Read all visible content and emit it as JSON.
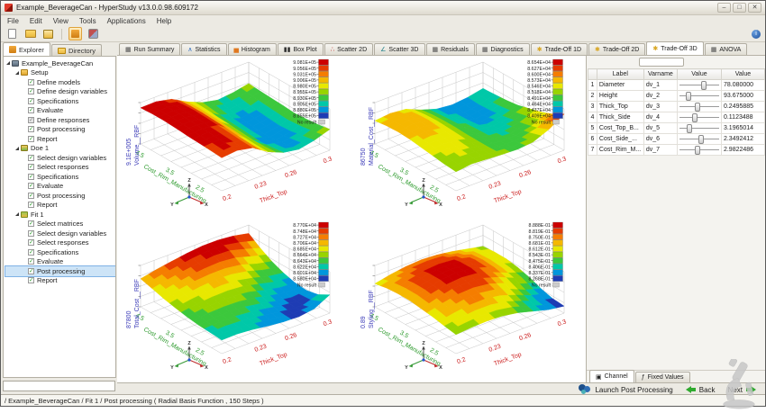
{
  "window": {
    "title": "Example_BeverageCan - HyperStudy v13.0.0.98.609172"
  },
  "menu": {
    "items": [
      "File",
      "Edit",
      "View",
      "Tools",
      "Applications",
      "Help"
    ]
  },
  "toolbar": {
    "buttons": [
      {
        "name": "new-study-button",
        "icon": "new-document-icon"
      },
      {
        "name": "open-study-button",
        "icon": "open-folder-icon"
      },
      {
        "name": "save-study-button",
        "icon": "save-icon"
      },
      {
        "name": "explorer-view-button",
        "icon": "explorer-tree-icon",
        "active": true
      },
      {
        "name": "refresh-button",
        "icon": "refresh-icon"
      }
    ],
    "info_icon": "info-icon"
  },
  "left_panel": {
    "tabs": [
      {
        "label": "Explorer",
        "icon": "tree-icon",
        "active": true
      },
      {
        "label": "Directory",
        "icon": "folder-icon",
        "active": false
      }
    ],
    "tree": {
      "root": {
        "label": "Example_BeverageCan",
        "icon": "study-icon"
      },
      "branches": [
        {
          "label": "Setup",
          "icon": "setup-icon",
          "items": [
            {
              "label": "Define models",
              "check": "checked"
            },
            {
              "label": "Define design variables",
              "check": "checked"
            },
            {
              "label": "Specifications",
              "check": "checked"
            },
            {
              "label": "Evaluate",
              "check": "checked"
            },
            {
              "label": "Define responses",
              "check": "partial"
            },
            {
              "label": "Post processing",
              "check": "checked"
            },
            {
              "label": "Report",
              "check": "checked"
            }
          ]
        },
        {
          "label": "Doe 1",
          "icon": "doe-icon",
          "items": [
            {
              "label": "Select design variables",
              "check": "checked"
            },
            {
              "label": "Select responses",
              "check": "checked"
            },
            {
              "label": "Specifications",
              "check": "checked"
            },
            {
              "label": "Evaluate",
              "check": "checked"
            },
            {
              "label": "Post processing",
              "check": "checked"
            },
            {
              "label": "Report",
              "check": "checked"
            }
          ]
        },
        {
          "label": "Fit 1",
          "icon": "fit-icon",
          "items": [
            {
              "label": "Select matrices",
              "check": "checked"
            },
            {
              "label": "Select design variables",
              "check": "checked"
            },
            {
              "label": "Select responses",
              "check": "checked"
            },
            {
              "label": "Specifications",
              "check": "checked"
            },
            {
              "label": "Evaluate",
              "check": "checked"
            },
            {
              "label": "Post processing",
              "check": "checked",
              "selected": true
            },
            {
              "label": "Report",
              "check": "checked"
            }
          ]
        }
      ]
    }
  },
  "main_tabs": [
    {
      "label": "Run Summary",
      "icon": "run-summary-icon"
    },
    {
      "label": "Statistics",
      "icon": "statistics-icon"
    },
    {
      "label": "Histogram",
      "icon": "histogram-icon"
    },
    {
      "label": "Box Plot",
      "icon": "box-plot-icon"
    },
    {
      "label": "Scatter 2D",
      "icon": "scatter-2d-icon"
    },
    {
      "label": "Scatter 3D",
      "icon": "scatter-3d-icon"
    },
    {
      "label": "Residuals",
      "icon": "residuals-icon"
    },
    {
      "label": "Diagnostics",
      "icon": "diagnostics-icon"
    },
    {
      "label": "Trade-Off 1D",
      "icon": "trade-off-icon"
    },
    {
      "label": "Trade-Off 2D",
      "icon": "trade-off-icon"
    },
    {
      "label": "Trade-Off 3D",
      "icon": "trade-off-icon",
      "active": true
    },
    {
      "label": "ANOVA",
      "icon": "anova-icon"
    }
  ],
  "variables_table": {
    "headers": [
      "",
      "Label",
      "Varname",
      "Value",
      "Value"
    ],
    "rows": [
      {
        "num": "1",
        "label": "Diameter",
        "varname": "dv_1",
        "slider": 0.62,
        "value": "78.080000"
      },
      {
        "num": "2",
        "label": "Height",
        "varname": "dv_2",
        "slider": 0.18,
        "value": "93.675000"
      },
      {
        "num": "3",
        "label": "Thick_Top",
        "varname": "dv_3",
        "slider": 0.46,
        "value": "0.2495885"
      },
      {
        "num": "4",
        "label": "Thick_Side",
        "varname": "dv_4",
        "slider": 0.36,
        "value": "0.1123488"
      },
      {
        "num": "5",
        "label": "Cost_Top_B...",
        "varname": "dv_5",
        "slider": 0.22,
        "value": "3.1965014"
      },
      {
        "num": "6",
        "label": "Cost_Side_...",
        "varname": "dv_6",
        "slider": 0.56,
        "value": "2.3492412"
      },
      {
        "num": "7",
        "label": "Cost_Rim_M...",
        "varname": "dv_7",
        "slider": 0.44,
        "value": "2.9822486"
      }
    ]
  },
  "right_tabs": [
    {
      "label": "Channel",
      "icon": "channel-icon",
      "active": true
    },
    {
      "label": "Fixed Values",
      "icon": "fixed-values-icon",
      "active": false
    }
  ],
  "action_bar": {
    "launch_label": "Launch Post Processing",
    "back_label": "Back",
    "next_label": "Next"
  },
  "status_bar": {
    "text": "/ Example_BeverageCan / Fit 1 / Post processing ( Radial Basis Function , 150 Steps )"
  },
  "colors": {
    "legend_ramp": [
      "#cc0000",
      "#e63c00",
      "#f57d00",
      "#f5b800",
      "#e8e800",
      "#98d400",
      "#3cc83c",
      "#00c8a8",
      "#0096dc",
      "#1e3cb4"
    ],
    "no_result": "#cccccc",
    "x_axis": "#2e9b2e",
    "y_axis": "#cc2020",
    "z_label": "#3a3ab8",
    "accent_green": "#2faa2f"
  },
  "plot_common": {
    "triad_labels": [
      "Z",
      "Y",
      "X"
    ],
    "no_result_label": "No result"
  },
  "chart_data": [
    {
      "type": "surface",
      "title": "Volume__RBF",
      "peak_label": "9.1E+005",
      "xlabel": "Cost_Rim_Manufacturing",
      "x_ticks": [
        "4.5",
        "3.5",
        "2.5"
      ],
      "ylabel": "Thick_Top",
      "y_ticks": [
        "0.2",
        "0.23",
        "0.26",
        "0.3"
      ],
      "legend": [
        "9.081E+05",
        "9.056E+05",
        "9.031E+05",
        "9.006E+05",
        "8.980E+05",
        "8.955E+05",
        "8.930E+05",
        "8.905E+05",
        "8.880E+05",
        "8.855E+05"
      ],
      "z_grid": [
        [
          0.95,
          0.96,
          0.86,
          0.6,
          0.4,
          0.3,
          0.35,
          0.45
        ],
        [
          0.97,
          1.0,
          0.9,
          0.62,
          0.35,
          0.22,
          0.28,
          0.42
        ],
        [
          0.97,
          1.0,
          0.92,
          0.6,
          0.3,
          0.15,
          0.22,
          0.4
        ],
        [
          0.95,
          0.98,
          0.9,
          0.58,
          0.28,
          0.1,
          0.18,
          0.38
        ],
        [
          0.92,
          0.96,
          0.88,
          0.55,
          0.25,
          0.08,
          0.15,
          0.35
        ],
        [
          0.9,
          0.94,
          0.85,
          0.52,
          0.22,
          0.1,
          0.18,
          0.38
        ],
        [
          0.88,
          0.92,
          0.82,
          0.5,
          0.25,
          0.15,
          0.25,
          0.42
        ],
        [
          0.85,
          0.9,
          0.8,
          0.5,
          0.3,
          0.22,
          0.32,
          0.48
        ]
      ]
    },
    {
      "type": "surface",
      "title": "Material_Cost__RBF",
      "peak_label": "86750",
      "xlabel": "Cost_Rim_Manufacturing",
      "x_ticks": [
        "4.5",
        "3.5",
        "2.5"
      ],
      "ylabel": "Thick_Top",
      "y_ticks": [
        "0.2",
        "0.23",
        "0.26",
        "0.3"
      ],
      "legend": [
        "8.654E+04",
        "8.627E+04",
        "8.600E+04",
        "8.573E+04",
        "8.546E+04",
        "8.518E+04",
        "8.491E+04",
        "8.464E+04",
        "8.437E+04",
        "8.409E+04"
      ],
      "z_grid": [
        [
          0.55,
          0.6,
          0.55,
          0.35,
          0.2,
          0.15,
          0.2,
          0.3
        ],
        [
          0.6,
          0.68,
          0.6,
          0.4,
          0.22,
          0.12,
          0.18,
          0.32
        ],
        [
          0.62,
          0.7,
          0.62,
          0.42,
          0.25,
          0.12,
          0.2,
          0.35
        ],
        [
          0.6,
          0.65,
          0.58,
          0.42,
          0.28,
          0.18,
          0.25,
          0.4
        ],
        [
          0.55,
          0.6,
          0.55,
          0.4,
          0.3,
          0.25,
          0.32,
          0.5
        ],
        [
          0.5,
          0.55,
          0.5,
          0.4,
          0.32,
          0.3,
          0.4,
          0.6
        ],
        [
          0.45,
          0.5,
          0.48,
          0.4,
          0.35,
          0.38,
          0.5,
          0.75
        ],
        [
          0.42,
          0.48,
          0.45,
          0.42,
          0.4,
          0.45,
          0.65,
          0.95
        ]
      ]
    },
    {
      "type": "surface",
      "title": "Total_Cost__RBF",
      "peak_label": "87800",
      "xlabel": "Cost_Rim_Manufacturing",
      "x_ticks": [
        "4.5",
        "3.5",
        "2.5"
      ],
      "ylabel": "Thick_Top",
      "y_ticks": [
        "0.2",
        "0.23",
        "0.26",
        "0.3"
      ],
      "legend": [
        "8.770E+04",
        "8.748E+04",
        "8.727E+04",
        "8.706E+04",
        "8.685E+04",
        "8.664E+04",
        "8.643E+04",
        "8.622E+04",
        "8.601E+04",
        "8.580E+04"
      ],
      "z_grid": [
        [
          0.7,
          0.8,
          0.88,
          0.95,
          1.0,
          1.0,
          0.95,
          0.85
        ],
        [
          0.6,
          0.7,
          0.78,
          0.85,
          0.9,
          0.88,
          0.75,
          0.6
        ],
        [
          0.5,
          0.6,
          0.68,
          0.72,
          0.72,
          0.65,
          0.5,
          0.4
        ],
        [
          0.42,
          0.5,
          0.55,
          0.58,
          0.55,
          0.45,
          0.32,
          0.25
        ],
        [
          0.35,
          0.42,
          0.45,
          0.45,
          0.4,
          0.28,
          0.18,
          0.15
        ],
        [
          0.3,
          0.35,
          0.36,
          0.33,
          0.25,
          0.15,
          0.08,
          0.12
        ],
        [
          0.28,
          0.3,
          0.28,
          0.22,
          0.15,
          0.08,
          0.05,
          0.2
        ],
        [
          0.25,
          0.26,
          0.22,
          0.15,
          0.1,
          0.08,
          0.15,
          0.4
        ]
      ]
    },
    {
      "type": "surface",
      "title": "Styling__RBF",
      "peak_label": "0.89",
      "xlabel": "Cost_Rim_Manufacturing",
      "x_ticks": [
        "4.5",
        "3.5",
        "2.5"
      ],
      "ylabel": "Thick_Top",
      "y_ticks": [
        "0.2",
        "0.23",
        "0.26",
        "0.3"
      ],
      "legend": [
        "8.888E-01",
        "8.819E-01",
        "8.750E-01",
        "8.681E-01",
        "8.612E-01",
        "8.543E-01",
        "8.475E-01",
        "8.406E-01",
        "8.337E-01",
        "8.268E-01"
      ],
      "z_grid": [
        [
          0.55,
          0.65,
          0.72,
          0.75,
          0.72,
          0.65,
          0.55,
          0.45
        ],
        [
          0.62,
          0.75,
          0.85,
          0.88,
          0.85,
          0.75,
          0.6,
          0.48
        ],
        [
          0.65,
          0.8,
          0.92,
          0.97,
          0.92,
          0.8,
          0.62,
          0.48
        ],
        [
          0.65,
          0.8,
          0.92,
          0.97,
          0.93,
          0.78,
          0.58,
          0.42
        ],
        [
          0.6,
          0.74,
          0.85,
          0.88,
          0.83,
          0.68,
          0.48,
          0.32
        ],
        [
          0.55,
          0.65,
          0.73,
          0.75,
          0.68,
          0.52,
          0.32,
          0.18
        ],
        [
          0.48,
          0.55,
          0.6,
          0.6,
          0.52,
          0.36,
          0.18,
          0.08
        ],
        [
          0.42,
          0.46,
          0.48,
          0.46,
          0.38,
          0.25,
          0.12,
          0.05
        ]
      ]
    }
  ]
}
